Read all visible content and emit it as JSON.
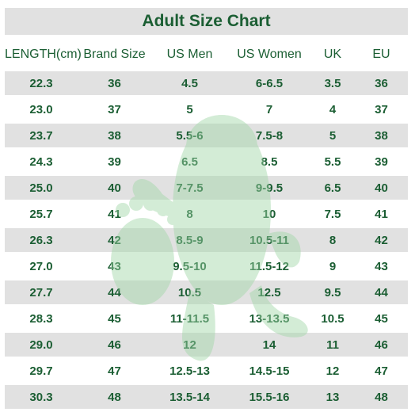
{
  "title": "Adult Size Chart",
  "columns": [
    "LENGTH(cm)",
    "Brand Size",
    "US Men",
    "US Women",
    "UK",
    "EU"
  ],
  "rows": [
    [
      "22.3",
      "36",
      "4.5",
      "6-6.5",
      "3.5",
      "36"
    ],
    [
      "23.0",
      "37",
      "5",
      "7",
      "4",
      "37"
    ],
    [
      "23.7",
      "38",
      "5.5-6",
      "7.5-8",
      "5",
      "38"
    ],
    [
      "24.3",
      "39",
      "6.5",
      "8.5",
      "5.5",
      "39"
    ],
    [
      "25.0",
      "40",
      "7-7.5",
      "9-9.5",
      "6.5",
      "40"
    ],
    [
      "25.7",
      "41",
      "8",
      "10",
      "7.5",
      "41"
    ],
    [
      "26.3",
      "42",
      "8.5-9",
      "10.5-11",
      "8",
      "42"
    ],
    [
      "27.0",
      "43",
      "9.5-10",
      "11.5-12",
      "9",
      "43"
    ],
    [
      "27.7",
      "44",
      "10.5",
      "12.5",
      "9.5",
      "44"
    ],
    [
      "28.3",
      "45",
      "11-11.5",
      "13-13.5",
      "10.5",
      "45"
    ],
    [
      "29.0",
      "46",
      "12",
      "14",
      "11",
      "46"
    ],
    [
      "29.7",
      "47",
      "12.5-13",
      "14.5-15",
      "12",
      "47"
    ],
    [
      "30.3",
      "48",
      "13.5-14",
      "15.5-16",
      "13",
      "48"
    ]
  ],
  "colors": {
    "text": "#1b5e33",
    "stripe": "#e1e1e1",
    "watermark": "#9fd6a6"
  },
  "watermark_icon": "cactus-foot-mascot-icon"
}
